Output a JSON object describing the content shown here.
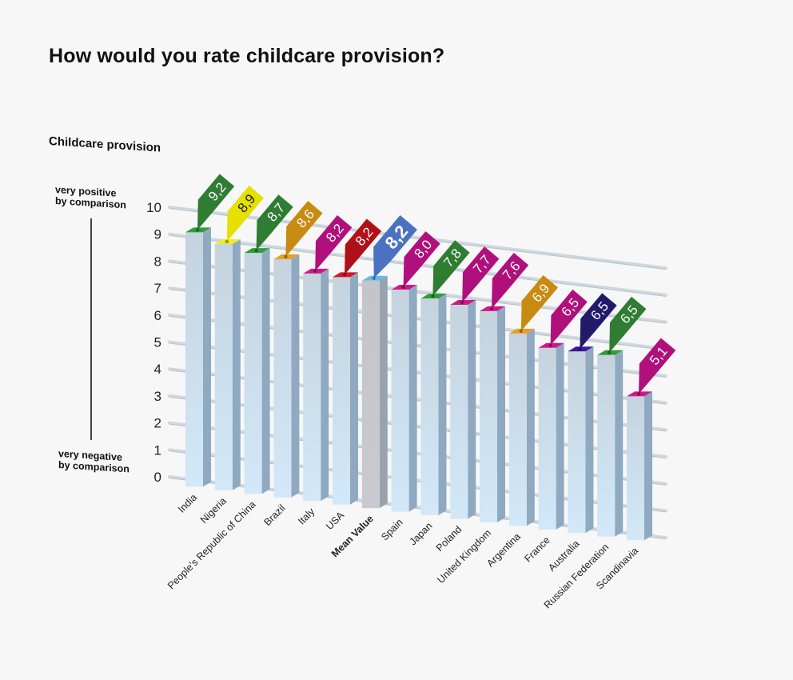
{
  "title": "How would you rate childcare provision?",
  "axis_caption": "Childcare provision",
  "scale_labels": {
    "top": [
      "very positive",
      "by comparison"
    ],
    "bottom": [
      "very negative",
      "by comparison"
    ]
  },
  "chart_data": {
    "type": "bar",
    "title": "How would you rate childcare provision?",
    "xlabel": "",
    "ylabel": "Childcare provision",
    "ylim": [
      0,
      10
    ],
    "yticks": [
      "0",
      "1",
      "2",
      "3",
      "4",
      "5",
      "6",
      "7",
      "8",
      "9",
      "10"
    ],
    "grid": true,
    "style": "3d-perspective",
    "categories": [
      "India",
      "Nigeria",
      "People's Republic of China",
      "Brazil",
      "Italy",
      "USA",
      "Mean Value",
      "Spain",
      "Japan",
      "Poland",
      "United Kingdom",
      "Argentina",
      "France",
      "Australia",
      "Russian Federation",
      "Scandinavia"
    ],
    "values": [
      9.2,
      8.9,
      8.7,
      8.6,
      8.2,
      8.2,
      8.2,
      8.0,
      7.8,
      7.7,
      7.6,
      6.9,
      6.5,
      6.5,
      6.5,
      5.1
    ],
    "value_labels": [
      "9,2",
      "8,9",
      "8,7",
      "8,6",
      "8,2",
      "8,2",
      "8,2",
      "8,0",
      "7,8",
      "7,7",
      "7,6",
      "6,9",
      "6,5",
      "6,5",
      "6,5",
      "5,1"
    ],
    "flag_colors": [
      "#2e7d32",
      "#e6e000",
      "#2e7d32",
      "#c88a10",
      "#b0107c",
      "#b01018",
      "#4a72c0",
      "#b0107c",
      "#2e7d32",
      "#b0107c",
      "#b0107c",
      "#c88a10",
      "#b0107c",
      "#221a6a",
      "#2e7d32",
      "#b0107c"
    ],
    "cap_colors": [
      "#2e9e3a",
      "#f0ec20",
      "#2e9e3a",
      "#e8a020",
      "#d01888",
      "#d01828",
      "#6ab8e8",
      "#d01888",
      "#2e9e3a",
      "#d01888",
      "#d01888",
      "#e8a020",
      "#d01888",
      "#3a1aa0",
      "#2e9e3a",
      "#d01888"
    ],
    "highlight": "Mean Value"
  }
}
